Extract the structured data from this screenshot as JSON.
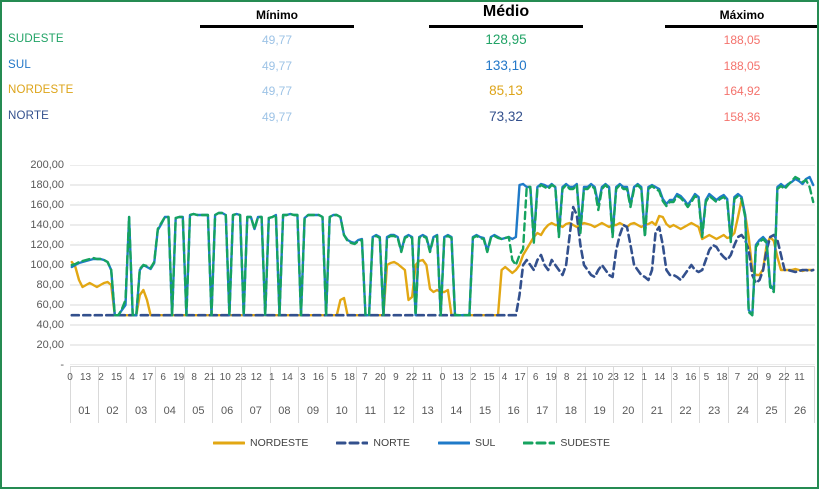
{
  "summary_table": {
    "headers": [
      {
        "label": "Mínimo"
      },
      {
        "label": "Médio"
      },
      {
        "label": "Máximo"
      }
    ],
    "min_value_color": "#9DC3E6",
    "max_value_color": "#F4726C",
    "rows": [
      {
        "region": "SUDESTE",
        "color": "#21A366",
        "min": "49,77",
        "med": "128,95",
        "max": "188,05"
      },
      {
        "region": "SUL",
        "color": "#2277C8",
        "min": "49,77",
        "med": "133,10",
        "max": "188,05"
      },
      {
        "region": "NORDESTE",
        "color": "#DDA419",
        "min": "49,77",
        "med": "85,13",
        "max": "164,92"
      },
      {
        "region": "NORTE",
        "color": "#33508D",
        "min": "49,77",
        "med": "73,32",
        "max": "158,36"
      }
    ]
  },
  "chart_data": {
    "type": "line",
    "title": "",
    "xlabel": "",
    "ylabel": "",
    "ylim": [
      0,
      200
    ],
    "grid": "horizontal",
    "gridline_color": "#D9D9D9",
    "legend_position": "bottom",
    "days": 26,
    "samples_per_day": 8,
    "hour_tick_interval_hours": 13,
    "y_tick_labels": [
      "200,00",
      "180,00",
      "160,00",
      "140,00",
      "120,00",
      "100,00",
      "80,00",
      "60,00",
      "40,00",
      "20,00",
      "-"
    ],
    "x_day_labels": [
      "01",
      "02",
      "03",
      "04",
      "05",
      "06",
      "07",
      "08",
      "09",
      "10",
      "11",
      "12",
      "13",
      "14",
      "15",
      "16",
      "17",
      "18",
      "19",
      "20",
      "21",
      "22",
      "23",
      "24",
      "25",
      "26"
    ],
    "x_hour_labels": [
      "0",
      "13",
      "2",
      "15",
      "4",
      "17",
      "6",
      "19",
      "8",
      "21",
      "10",
      "23",
      "12",
      "1",
      "14",
      "3",
      "16",
      "5",
      "18",
      "7",
      "20",
      "9",
      "22",
      "11",
      "0",
      "13",
      "2",
      "15",
      "4",
      "17",
      "6",
      "19",
      "8",
      "21",
      "10",
      "23",
      "12",
      "1",
      "14",
      "3",
      "16",
      "5",
      "18",
      "7",
      "20",
      "9",
      "22",
      "11"
    ],
    "series": [
      {
        "name": "NORDESTE",
        "color": "#E2A713",
        "style": "solid",
        "width": 2.4,
        "values": [
          103,
          98,
          85,
          78,
          80,
          82,
          80,
          78,
          80,
          82,
          83,
          80,
          49.8,
          49.8,
          49.8,
          49.8,
          49.8,
          49.8,
          49.8,
          70,
          75,
          65,
          49.8,
          49.8,
          49.8,
          49.8,
          49.8,
          49.8,
          49.8,
          49.8,
          49.8,
          49.8,
          49.8,
          49.8,
          49.8,
          49.8,
          49.8,
          49.8,
          49.8,
          49.8,
          49.8,
          49.8,
          49.8,
          49.8,
          49.8,
          49.8,
          49.8,
          49.8,
          49.8,
          49.8,
          49.8,
          49.8,
          49.8,
          49.8,
          49.8,
          49.8,
          49.8,
          49.8,
          49.8,
          49.8,
          49.8,
          49.8,
          49.8,
          49.8,
          49.8,
          49.8,
          49.8,
          49.8,
          49.8,
          49.8,
          49.8,
          49.8,
          49.8,
          49.8,
          49.8,
          65,
          67,
          49.8,
          49.8,
          49.8,
          49.8,
          49.8,
          49.8,
          49.8,
          49.8,
          49.8,
          49.8,
          49.8,
          100,
          102,
          103,
          101,
          98,
          95,
          65,
          68,
          100,
          104,
          105,
          100,
          76,
          73,
          75,
          73,
          73,
          75,
          49.8,
          49.8,
          49.8,
          49.8,
          49.8,
          49.8,
          49.8,
          49.8,
          49.8,
          49.8,
          49.8,
          49.8,
          49.8,
          49.8,
          95,
          98,
          95,
          92,
          95,
          100,
          110,
          116,
          122,
          128,
          132,
          130,
          136,
          140,
          142,
          140,
          140,
          138,
          141,
          142,
          140,
          138,
          140,
          142,
          141,
          140,
          138,
          140,
          142,
          140,
          138,
          140,
          140,
          142,
          140,
          138,
          141,
          142,
          140,
          138,
          140,
          141,
          143,
          140,
          149,
          148,
          141,
          138,
          140,
          138,
          136,
          138,
          140,
          142,
          140,
          138,
          126,
          128,
          130,
          128,
          126,
          128,
          130,
          127,
          128,
          132,
          148,
          165,
          150,
          128,
          95,
          90,
          90,
          96,
          120,
          128,
          124,
          108,
          95,
          95,
          95,
          95,
          96,
          95,
          94,
          95,
          95,
          95
        ]
      },
      {
        "name": "NORTE",
        "color": "#33508D",
        "style": "dashed",
        "width": 2.6,
        "values": [
          49.8,
          49.8,
          49.8,
          49.8,
          49.8,
          49.8,
          49.8,
          49.8,
          49.8,
          49.8,
          49.8,
          49.8,
          49.8,
          49.8,
          49.8,
          49.8,
          49.8,
          49.8,
          49.8,
          49.8,
          49.8,
          49.8,
          49.8,
          49.8,
          49.8,
          49.8,
          49.8,
          49.8,
          49.8,
          49.8,
          49.8,
          49.8,
          49.8,
          49.8,
          49.8,
          49.8,
          49.8,
          49.8,
          49.8,
          49.8,
          49.8,
          49.8,
          49.8,
          49.8,
          49.8,
          49.8,
          49.8,
          49.8,
          49.8,
          49.8,
          49.8,
          49.8,
          49.8,
          49.8,
          49.8,
          49.8,
          49.8,
          49.8,
          49.8,
          49.8,
          49.8,
          49.8,
          49.8,
          49.8,
          49.8,
          49.8,
          49.8,
          49.8,
          49.8,
          49.8,
          49.8,
          49.8,
          49.8,
          49.8,
          49.8,
          49.8,
          49.8,
          49.8,
          49.8,
          49.8,
          49.8,
          49.8,
          49.8,
          49.8,
          49.8,
          49.8,
          49.8,
          49.8,
          49.8,
          49.8,
          49.8,
          49.8,
          49.8,
          49.8,
          49.8,
          49.8,
          49.8,
          49.8,
          49.8,
          49.8,
          49.8,
          49.8,
          49.8,
          49.8,
          49.8,
          49.8,
          49.8,
          49.8,
          49.8,
          49.8,
          49.8,
          49.8,
          49.8,
          49.8,
          49.8,
          49.8,
          49.8,
          49.8,
          49.8,
          49.8,
          49.8,
          49.8,
          49.8,
          49.8,
          49.8,
          70,
          100,
          105,
          100,
          95,
          105,
          110,
          100,
          95,
          105,
          100,
          95,
          90,
          100,
          130,
          158,
          150,
          120,
          100,
          95,
          90,
          88,
          95,
          100,
          95,
          90,
          88,
          115,
          130,
          140,
          138,
          120,
          100,
          95,
          90,
          88,
          85,
          95,
          133,
          138,
          120,
          95,
          90,
          90,
          88,
          85,
          90,
          95,
          100,
          95,
          93,
          95,
          105,
          115,
          120,
          118,
          112,
          108,
          105,
          110,
          120,
          128,
          130,
          125,
          115,
          90,
          82,
          85,
          95,
          115,
          128,
          130,
          125,
          110,
          95,
          95,
          94,
          93,
          94,
          95,
          95,
          94,
          95
        ]
      },
      {
        "name": "SUL",
        "color": "#1F7AC8",
        "style": "solid",
        "width": 2.4,
        "values": [
          98,
          100,
          102,
          103,
          104,
          105,
          106,
          106,
          106,
          105,
          103,
          95,
          49.8,
          49.8,
          55,
          60,
          148,
          49.8,
          49.8,
          95,
          100,
          98,
          96,
          102,
          135,
          141,
          148,
          148,
          49.8,
          147,
          148,
          148,
          49.8,
          150,
          151,
          150,
          150,
          150,
          150,
          49.8,
          150,
          152,
          152,
          150,
          49.8,
          150,
          151,
          150,
          49.8,
          148,
          148,
          136,
          148,
          148,
          49.8,
          147,
          148,
          150,
          49.8,
          150,
          150,
          151,
          150,
          150,
          49.8,
          147,
          150,
          150,
          150,
          150,
          148,
          49.8,
          148,
          150,
          150,
          148,
          130,
          125,
          123,
          122,
          125,
          126,
          49.8,
          49.8,
          128,
          130,
          128,
          49.8,
          128,
          130,
          130,
          128,
          114,
          128,
          130,
          128,
          49.8,
          128,
          130,
          128,
          114,
          128,
          130,
          49.8,
          128,
          130,
          128,
          49.8,
          49.8,
          49.8,
          49.8,
          49.8,
          128,
          130,
          128,
          127,
          114,
          128,
          130,
          128,
          126,
          127,
          128,
          126,
          128,
          180,
          181,
          178,
          178,
          126,
          178,
          181,
          180,
          178,
          181,
          178,
          130,
          178,
          181,
          178,
          178,
          181,
          136,
          178,
          178,
          181,
          178,
          160,
          178,
          181,
          178,
          130,
          178,
          181,
          178,
          178,
          160,
          178,
          181,
          178,
          130,
          178,
          180,
          178,
          176,
          166,
          161,
          165,
          165,
          171,
          169,
          165,
          160,
          165,
          171,
          168,
          130,
          165,
          171,
          168,
          165,
          168,
          170,
          166,
          125,
          168,
          171,
          168,
          150,
          55,
          49.8,
          120,
          125,
          128,
          124,
          80,
          75,
          178,
          181,
          178,
          181,
          183,
          186,
          184,
          181,
          186,
          188,
          180
        ]
      },
      {
        "name": "SUDESTE",
        "color": "#16A35F",
        "style": "dashed",
        "width": 2.4,
        "values": [
          100,
          101,
          103,
          104,
          105,
          106,
          107,
          106,
          106,
          105,
          103,
          95,
          49.8,
          49.8,
          56,
          65,
          148,
          49.8,
          49.8,
          96,
          100,
          99,
          97,
          103,
          136,
          142,
          148,
          148,
          49.8,
          147,
          148,
          148,
          49.8,
          150,
          151,
          150,
          150,
          150,
          150,
          49.8,
          150,
          152,
          152,
          150,
          49.8,
          150,
          151,
          150,
          49.8,
          148,
          148,
          136,
          148,
          148,
          49.8,
          147,
          148,
          150,
          49.8,
          150,
          150,
          151,
          150,
          150,
          49.8,
          147,
          150,
          150,
          150,
          150,
          148,
          49.8,
          148,
          150,
          150,
          148,
          130,
          124,
          122,
          121,
          124,
          125,
          49.8,
          49.8,
          127,
          129,
          127,
          49.8,
          127,
          129,
          129,
          127,
          113,
          127,
          129,
          127,
          49.8,
          127,
          129,
          127,
          113,
          127,
          129,
          49.8,
          127,
          129,
          127,
          49.8,
          49.8,
          49.8,
          49.8,
          49.8,
          127,
          129,
          127,
          126,
          113,
          127,
          129,
          127,
          126,
          127,
          128,
          105,
          100,
          110,
          116,
          178,
          178,
          122,
          176,
          180,
          178,
          176,
          180,
          178,
          128,
          176,
          180,
          176,
          176,
          180,
          132,
          176,
          176,
          180,
          176,
          155,
          176,
          180,
          176,
          128,
          176,
          180,
          176,
          176,
          158,
          176,
          180,
          176,
          128,
          176,
          179,
          176,
          174,
          164,
          159,
          163,
          163,
          169,
          167,
          163,
          158,
          163,
          169,
          166,
          128,
          163,
          169,
          166,
          163,
          166,
          168,
          164,
          123,
          166,
          169,
          166,
          148,
          53,
          49.8,
          118,
          123,
          126,
          122,
          78,
          73,
          176,
          179,
          176,
          180,
          184,
          188,
          186,
          183,
          185,
          178,
          163
        ]
      }
    ],
    "legend_order": [
      "NORDESTE",
      "NORTE",
      "SUL",
      "SUDESTE"
    ]
  }
}
